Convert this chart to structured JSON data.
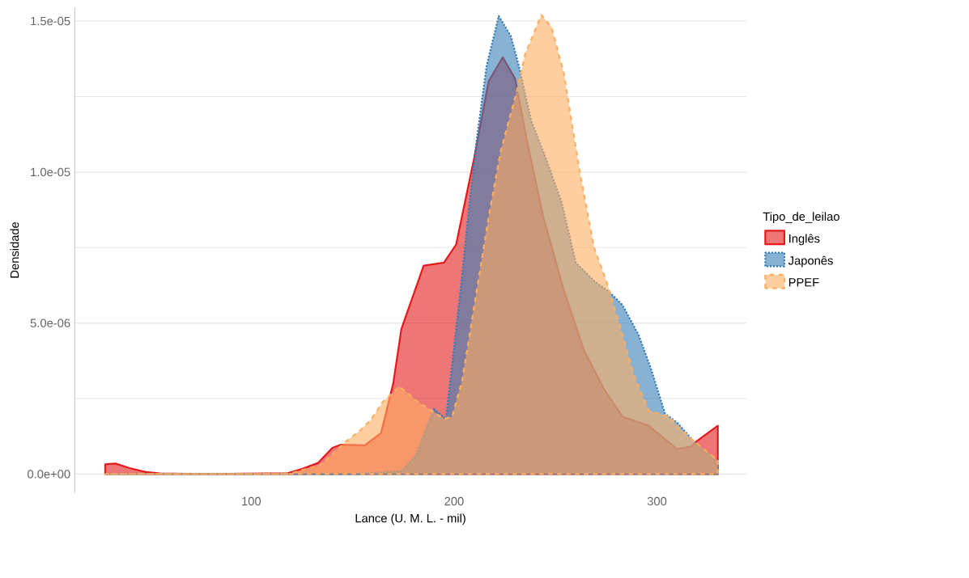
{
  "chart_data": {
    "type": "area",
    "xlabel": "Lance (U. M. L. - mil)",
    "ylabel": "Densidade",
    "legend_title": "Tipo_de_leilao",
    "xlim": [
      13,
      344
    ],
    "ylim": [
      -6.2e-07,
      1.545e-05
    ],
    "xticks": [
      100,
      200,
      300
    ],
    "yticks": [
      {
        "value": 0,
        "label": "0.0e+00"
      },
      {
        "value": 2.5e-06,
        "label": null
      },
      {
        "value": 5e-06,
        "label": "5.0e-06"
      },
      {
        "value": 7.5e-06,
        "label": null
      },
      {
        "value": 1e-05,
        "label": "1.0e-05"
      },
      {
        "value": 1.25e-05,
        "label": null
      },
      {
        "value": 1.5e-05,
        "label": "1.5e-05"
      }
    ],
    "grid": "y",
    "legend": "right",
    "series": [
      {
        "name": "Inglês",
        "color": "#e41a1c",
        "line_style": "solid",
        "x": [
          28,
          33,
          40,
          48,
          55,
          75,
          118,
          125,
          133,
          140,
          144,
          156,
          164,
          170,
          174,
          185,
          195,
          201,
          210,
          217,
          224,
          230,
          236,
          244,
          254,
          264,
          274,
          283,
          296,
          310,
          317,
          319,
          330
        ],
        "values": [
          3.2e-07,
          3.5e-07,
          2e-07,
          7e-08,
          2e-08,
          0,
          3e-08,
          1.7e-07,
          3.7e-07,
          8.7e-07,
          9.7e-07,
          9.5e-07,
          1.36e-06,
          3e-06,
          4.8e-06,
          6.9e-06,
          7e-06,
          7.6e-06,
          1.05e-05,
          1.3e-05,
          1.38e-05,
          1.31e-05,
          1.1e-05,
          8.5e-06,
          6.1e-06,
          4.1e-06,
          2.8e-06,
          1.9e-06,
          1.6e-06,
          8.2e-07,
          9.2e-07,
          1.06e-06,
          1.6e-06
        ]
      },
      {
        "name": "Japonês",
        "color": "#377eb8",
        "line_style": "dotted",
        "x": [
          28,
          150,
          174,
          181,
          190,
          196,
          199,
          204,
          207,
          211,
          216,
          222,
          228,
          232,
          238,
          245,
          253,
          260,
          269,
          277,
          283,
          291,
          297,
          304,
          310,
          320,
          330
        ],
        "values": [
          0,
          0,
          1e-07,
          6e-07,
          2.15e-06,
          1.83e-06,
          3.6e-06,
          6.6e-06,
          8.6e-06,
          1.1e-05,
          1.35e-05,
          1.517e-05,
          1.45e-05,
          1.35e-05,
          1.17e-05,
          1.05e-05,
          9e-06,
          7e-06,
          6.4e-06,
          6e-06,
          5.6e-06,
          4.6e-06,
          3.5e-06,
          2e-06,
          1.7e-06,
          9.4e-07,
          4e-07
        ]
      },
      {
        "name": "PPEF",
        "color": "#fdae61",
        "line_style": "dashed",
        "x": [
          28,
          118,
          134,
          147,
          153,
          159,
          165,
          170,
          173,
          182,
          189,
          195,
          199,
          204,
          210,
          217,
          223,
          231,
          235,
          243,
          248,
          254,
          262,
          269,
          275,
          283,
          289,
          296,
          306,
          310,
          318,
          330
        ],
        "values": [
          0,
          0,
          3e-07,
          1.1e-06,
          1.4e-06,
          1.8e-06,
          2.4e-06,
          2.7e-06,
          2.9e-06,
          2.4e-06,
          2.1e-06,
          1.83e-06,
          1.9e-06,
          3.1e-06,
          5.6e-06,
          8.5e-06,
          1.07e-05,
          1.27e-05,
          1.39e-05,
          1.52e-05,
          1.48e-05,
          1.33e-05,
          1e-05,
          7.5e-06,
          6.4e-06,
          4.6e-06,
          3.2e-06,
          2.1e-06,
          1.9e-06,
          1.6e-06,
          1.1e-06,
          4.5e-07
        ]
      }
    ]
  }
}
